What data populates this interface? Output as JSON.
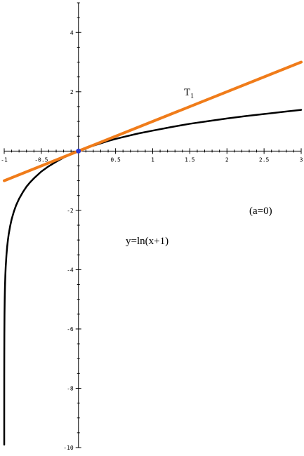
{
  "chart_data": {
    "type": "line",
    "title": "",
    "xlabel": "",
    "ylabel": "",
    "xlim": [
      -1,
      3
    ],
    "ylim": [
      -10,
      5
    ],
    "grid": false,
    "x_ticks": [
      -1,
      -0.5,
      0.5,
      1,
      1.5,
      2,
      2.5,
      3
    ],
    "x_tick_labels": [
      "-1",
      "-0.5",
      "0.5",
      "1",
      "1.5",
      "2",
      "2.5",
      "3"
    ],
    "y_ticks": [
      4,
      2,
      -2,
      -4,
      -6,
      -8,
      -10
    ],
    "y_tick_labels": [
      "4",
      "2",
      "-2",
      "-4",
      "-6",
      "-8",
      "-10"
    ],
    "series": [
      {
        "color": "#000000",
        "x": [
          -0.99995,
          -0.9999,
          -0.9995,
          -0.999,
          -0.998,
          -0.996,
          -0.993,
          -0.99,
          -0.985,
          -0.98,
          -0.97,
          -0.96,
          -0.95,
          -0.94,
          -0.92,
          -0.9,
          -0.87,
          -0.84,
          -0.8,
          -0.75,
          -0.7,
          -0.65,
          -0.6,
          -0.5,
          -0.4,
          -0.3,
          -0.2,
          -0.1,
          0,
          0.1,
          0.2,
          0.3,
          0.4,
          0.5,
          0.6,
          0.8,
          1,
          1.25,
          1.5,
          1.75,
          2,
          2.25,
          2.5,
          2.75,
          3
        ],
        "y": [
          -9.9,
          -9.21,
          -7.6,
          -6.91,
          -6.21,
          -5.52,
          -4.96,
          -4.61,
          -4.2,
          -3.91,
          -3.51,
          -3.22,
          -3.0,
          -2.81,
          -2.53,
          -2.3,
          -2.04,
          -1.83,
          -1.61,
          -1.39,
          -1.2,
          -1.05,
          -0.92,
          -0.69,
          -0.51,
          -0.36,
          -0.22,
          -0.11,
          0,
          0.1,
          0.18,
          0.26,
          0.34,
          0.41,
          0.47,
          0.59,
          0.69,
          0.81,
          0.92,
          1.01,
          1.1,
          1.18,
          1.25,
          1.32,
          1.39
        ]
      },
      {
        "color": "#f07c1a",
        "x": [
          -1,
          3
        ],
        "y": [
          -1,
          3
        ]
      }
    ],
    "point": {
      "x": 0,
      "y": 0,
      "color": "#2b3bd6"
    },
    "annotations": {
      "tangent_label": "T",
      "tangent_sub": "1",
      "param_label": "(a=0)",
      "curve_label": "y=ln(x+1)"
    }
  }
}
